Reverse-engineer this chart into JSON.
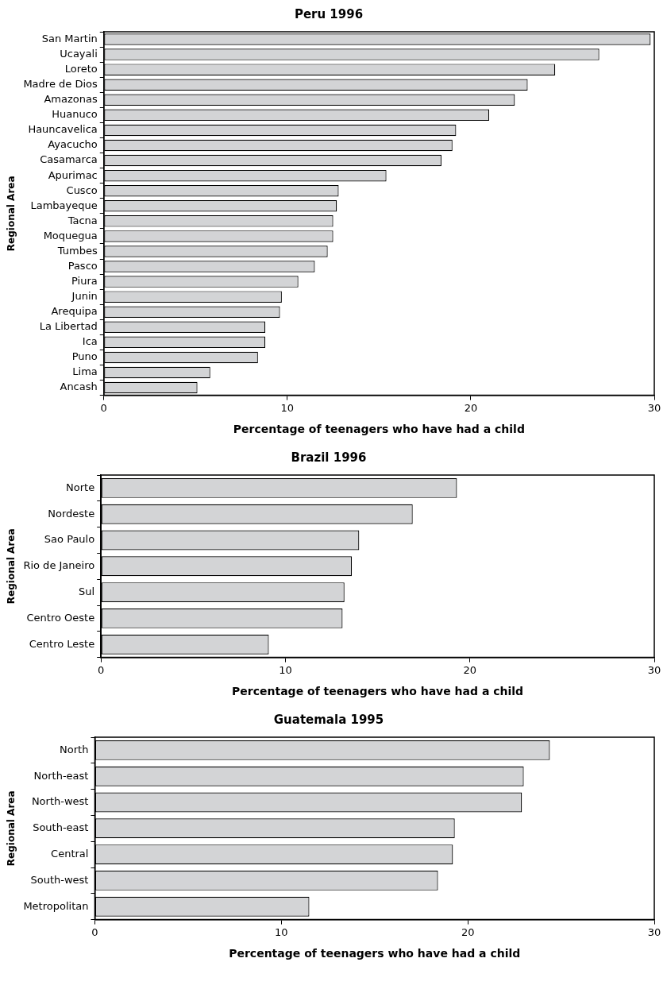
{
  "chart_data": [
    {
      "type": "bar",
      "orientation": "horizontal",
      "title": "Peru 1996",
      "xlabel": "Percentage of teenagers who have had a child",
      "ylabel": "Regional Area",
      "categories": [
        "San Martin",
        "Ucayali",
        "Loreto",
        "Madre de Dios",
        "Amazonas",
        "Huanuco",
        "Hauncavelica",
        "Ayacucho",
        "Casamarca",
        "Apurimac",
        "Cusco",
        "Lambayeque",
        "Tacna",
        "Moquegua",
        "Tumbes",
        "Pasco",
        "Piura",
        "Junin",
        "Arequipa",
        "La Libertad",
        "Ica",
        "Puno",
        "Lima",
        "Ancash"
      ],
      "values": [
        29.8,
        27.0,
        24.6,
        23.1,
        22.4,
        21.0,
        19.2,
        19.0,
        18.4,
        15.4,
        12.8,
        12.7,
        12.5,
        12.5,
        12.2,
        11.5,
        10.6,
        9.7,
        9.6,
        8.8,
        8.8,
        8.4,
        5.8,
        5.1
      ],
      "color": "#d3d4d6",
      "xlim": [
        0,
        30
      ],
      "xticks": [
        0,
        10,
        20,
        30
      ],
      "grid": false,
      "legend": false
    },
    {
      "type": "bar",
      "orientation": "horizontal",
      "title": "Brazil 1996",
      "xlabel": "Percentage of teenagers who have had a child",
      "ylabel": "Regional Area",
      "categories": [
        "Norte",
        "Nordeste",
        "Sao Paulo",
        "Rio de Janeiro",
        "Sul",
        "Centro Oeste",
        "Centro Leste"
      ],
      "values": [
        19.3,
        16.9,
        14.0,
        13.6,
        13.2,
        13.1,
        9.1
      ],
      "color": "#d3d4d6",
      "xlim": [
        0,
        30
      ],
      "xticks": [
        0,
        10,
        20,
        30
      ],
      "grid": false,
      "legend": false
    },
    {
      "type": "bar",
      "orientation": "horizontal",
      "title": "Guatemala 1995",
      "xlabel": "Percentage of teenagers who have had a child",
      "ylabel": "Regional Area",
      "categories": [
        "North",
        "North-east",
        "North-west",
        "South-east",
        "Central",
        "South-west",
        "Metropolitan"
      ],
      "values": [
        24.4,
        23.0,
        22.9,
        19.3,
        19.2,
        18.4,
        11.5
      ],
      "color": "#d3d4d6",
      "xlim": [
        0,
        30
      ],
      "xticks": [
        0,
        10,
        20,
        30
      ],
      "grid": false,
      "legend": false
    }
  ]
}
